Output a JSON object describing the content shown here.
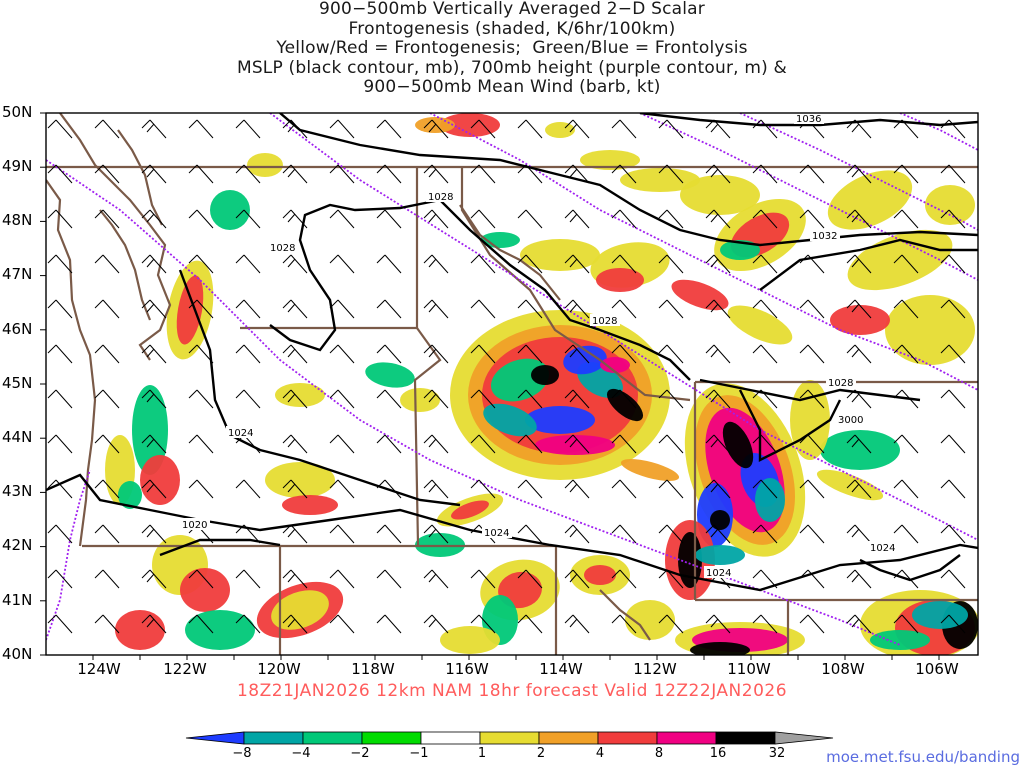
{
  "title": {
    "lines": [
      "900−500mb Vertically Averaged 2−D Scalar",
      "Frontogenesis (shaded, K/6hr/100km)",
      "Yellow/Red = Frontogenesis;  Green/Blue = Frontolysis",
      "MSLP (black contour, mb), 700mb height (purple contour, m) &",
      "900−500mb Mean Wind (barb, kt)"
    ]
  },
  "map": {
    "lat_range": [
      40,
      50
    ],
    "lon_range": [
      -125.2,
      -105
    ],
    "lat_labels": [
      "50N",
      "49N",
      "48N",
      "47N",
      "46N",
      "45N",
      "44N",
      "43N",
      "42N",
      "41N",
      "40N"
    ],
    "lon_labels": [
      "124W",
      "122W",
      "120W",
      "118W",
      "116W",
      "114W",
      "112W",
      "110W",
      "108W",
      "106W"
    ],
    "isobar_labels": [
      "1036",
      "1032",
      "1028",
      "1028",
      "1028",
      "1028",
      "1024",
      "1024",
      "1024",
      "1024",
      "1020"
    ],
    "height_labels": [
      "3000"
    ],
    "colors": {
      "border": "#7a5a48",
      "isobar": "#000000",
      "height": "#a020f0",
      "barb": "#000000"
    }
  },
  "forecast": {
    "valid_line": "18Z21JAN2026  12km NAM  18hr forecast  Valid  12Z22JAN2026"
  },
  "colorbar": {
    "labels": [
      "−8",
      "−4",
      "−2",
      "−1",
      "1",
      "2",
      "4",
      "8",
      "16",
      "32"
    ],
    "colors": [
      "#1e3cff",
      "#00a5a5",
      "#00c878",
      "#00dc00",
      "#ffffff",
      "#e6dc32",
      "#f0a028",
      "#f03c3c",
      "#f00082",
      "#000000",
      "#a0a0a0"
    ]
  },
  "credit": "moe.met.fsu.edu/banding"
}
